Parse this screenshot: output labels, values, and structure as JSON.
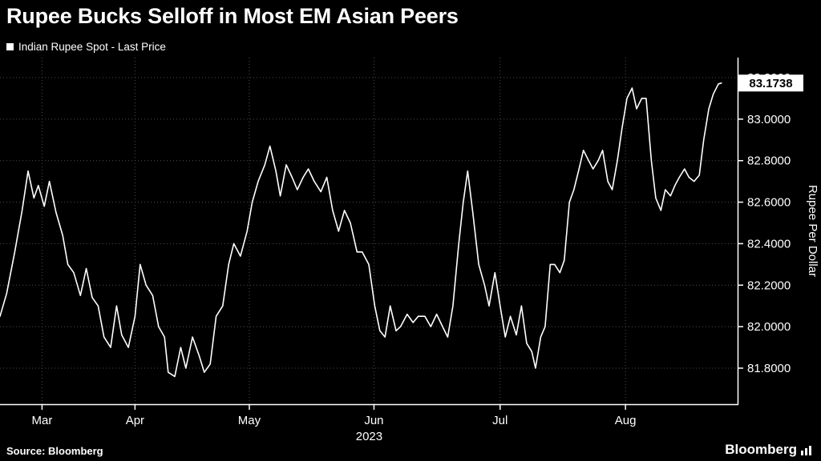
{
  "header": {
    "title": "Rupee Bucks Selloff in Most EM Asian Peers",
    "legend_label": "Indian Rupee Spot - Last Price"
  },
  "footer": {
    "source": "Source: Bloomberg",
    "brand": "Bloomberg"
  },
  "chart_data": {
    "type": "line",
    "title": "Rupee Bucks Selloff in Most EM Asian Peers",
    "series_name": "Indian Rupee Spot - Last Price",
    "ylabel": "Rupee Per Dollar",
    "ylim": [
      81.63,
      83.29
    ],
    "yticks": [
      81.8,
      82.0,
      82.2,
      82.4,
      82.6,
      82.8,
      83.0,
      83.2
    ],
    "ytick_labels": [
      "81.8000",
      "82.0000",
      "82.2000",
      "82.4000",
      "82.6000",
      "82.8000",
      "83.0000",
      "83.2000"
    ],
    "x_tick_labels": [
      "Mar",
      "Apr",
      "May",
      "Jun",
      "Jul",
      "Aug"
    ],
    "x_tick_positions": [
      0.057,
      0.183,
      0.338,
      0.507,
      0.678,
      0.848
    ],
    "x_axis_year": "2023",
    "last_price": 83.1738,
    "last_price_label": "83.1738",
    "line_color": "#ffffff",
    "grid_color": "#4d4d4d",
    "background": "#000000",
    "grid": true,
    "legend_position": "top-left",
    "points": [
      [
        0.0,
        82.05
      ],
      [
        0.009,
        82.16
      ],
      [
        0.02,
        82.36
      ],
      [
        0.03,
        82.56
      ],
      [
        0.038,
        82.75
      ],
      [
        0.046,
        82.62
      ],
      [
        0.052,
        82.68
      ],
      [
        0.06,
        82.58
      ],
      [
        0.067,
        82.7
      ],
      [
        0.076,
        82.55
      ],
      [
        0.085,
        82.44
      ],
      [
        0.092,
        82.3
      ],
      [
        0.1,
        82.26
      ],
      [
        0.109,
        82.15
      ],
      [
        0.117,
        82.28
      ],
      [
        0.125,
        82.14
      ],
      [
        0.133,
        82.1
      ],
      [
        0.141,
        81.95
      ],
      [
        0.15,
        81.9
      ],
      [
        0.158,
        82.1
      ],
      [
        0.165,
        81.96
      ],
      [
        0.174,
        81.9
      ],
      [
        0.183,
        82.05
      ],
      [
        0.19,
        82.3
      ],
      [
        0.198,
        82.2
      ],
      [
        0.207,
        82.15
      ],
      [
        0.215,
        82.0
      ],
      [
        0.223,
        81.95
      ],
      [
        0.228,
        81.78
      ],
      [
        0.237,
        81.76
      ],
      [
        0.245,
        81.9
      ],
      [
        0.252,
        81.8
      ],
      [
        0.261,
        81.95
      ],
      [
        0.27,
        81.86
      ],
      [
        0.277,
        81.78
      ],
      [
        0.285,
        81.82
      ],
      [
        0.293,
        82.05
      ],
      [
        0.302,
        82.1
      ],
      [
        0.31,
        82.3
      ],
      [
        0.317,
        82.4
      ],
      [
        0.326,
        82.34
      ],
      [
        0.335,
        82.46
      ],
      [
        0.342,
        82.6
      ],
      [
        0.35,
        82.7
      ],
      [
        0.359,
        82.78
      ],
      [
        0.366,
        82.87
      ],
      [
        0.374,
        82.75
      ],
      [
        0.38,
        82.63
      ],
      [
        0.388,
        82.78
      ],
      [
        0.396,
        82.72
      ],
      [
        0.403,
        82.66
      ],
      [
        0.411,
        82.72
      ],
      [
        0.418,
        82.76
      ],
      [
        0.426,
        82.7
      ],
      [
        0.435,
        82.65
      ],
      [
        0.443,
        82.72
      ],
      [
        0.451,
        82.56
      ],
      [
        0.459,
        82.46
      ],
      [
        0.467,
        82.56
      ],
      [
        0.475,
        82.5
      ],
      [
        0.484,
        82.36
      ],
      [
        0.491,
        82.36
      ],
      [
        0.5,
        82.3
      ],
      [
        0.508,
        82.1
      ],
      [
        0.515,
        81.98
      ],
      [
        0.522,
        81.95
      ],
      [
        0.529,
        82.1
      ],
      [
        0.537,
        81.98
      ],
      [
        0.543,
        82.0
      ],
      [
        0.552,
        82.06
      ],
      [
        0.56,
        82.02
      ],
      [
        0.567,
        82.05
      ],
      [
        0.576,
        82.05
      ],
      [
        0.584,
        82.0
      ],
      [
        0.592,
        82.06
      ],
      [
        0.6,
        82.0
      ],
      [
        0.607,
        81.95
      ],
      [
        0.614,
        82.1
      ],
      [
        0.622,
        82.4
      ],
      [
        0.628,
        82.6
      ],
      [
        0.634,
        82.75
      ],
      [
        0.641,
        82.55
      ],
      [
        0.649,
        82.3
      ],
      [
        0.657,
        82.2
      ],
      [
        0.663,
        82.1
      ],
      [
        0.671,
        82.26
      ],
      [
        0.678,
        82.1
      ],
      [
        0.685,
        81.95
      ],
      [
        0.692,
        82.05
      ],
      [
        0.7,
        81.96
      ],
      [
        0.707,
        82.1
      ],
      [
        0.714,
        81.92
      ],
      [
        0.721,
        81.88
      ],
      [
        0.726,
        81.8
      ],
      [
        0.733,
        81.95
      ],
      [
        0.739,
        82.0
      ],
      [
        0.746,
        82.3
      ],
      [
        0.752,
        82.3
      ],
      [
        0.759,
        82.26
      ],
      [
        0.765,
        82.32
      ],
      [
        0.772,
        82.6
      ],
      [
        0.778,
        82.66
      ],
      [
        0.785,
        82.76
      ],
      [
        0.791,
        82.85
      ],
      [
        0.798,
        82.8
      ],
      [
        0.804,
        82.76
      ],
      [
        0.811,
        82.8
      ],
      [
        0.817,
        82.85
      ],
      [
        0.824,
        82.7
      ],
      [
        0.83,
        82.66
      ],
      [
        0.837,
        82.8
      ],
      [
        0.843,
        82.95
      ],
      [
        0.85,
        83.1
      ],
      [
        0.857,
        83.15
      ],
      [
        0.863,
        83.05
      ],
      [
        0.87,
        83.1
      ],
      [
        0.876,
        83.1
      ],
      [
        0.883,
        82.8
      ],
      [
        0.889,
        82.62
      ],
      [
        0.896,
        82.56
      ],
      [
        0.902,
        82.66
      ],
      [
        0.909,
        82.63
      ],
      [
        0.915,
        82.68
      ],
      [
        0.921,
        82.72
      ],
      [
        0.928,
        82.76
      ],
      [
        0.934,
        82.72
      ],
      [
        0.941,
        82.7
      ],
      [
        0.948,
        82.73
      ],
      [
        0.954,
        82.9
      ],
      [
        0.961,
        83.05
      ],
      [
        0.967,
        83.12
      ],
      [
        0.974,
        83.17
      ],
      [
        0.978,
        83.1738
      ]
    ]
  }
}
